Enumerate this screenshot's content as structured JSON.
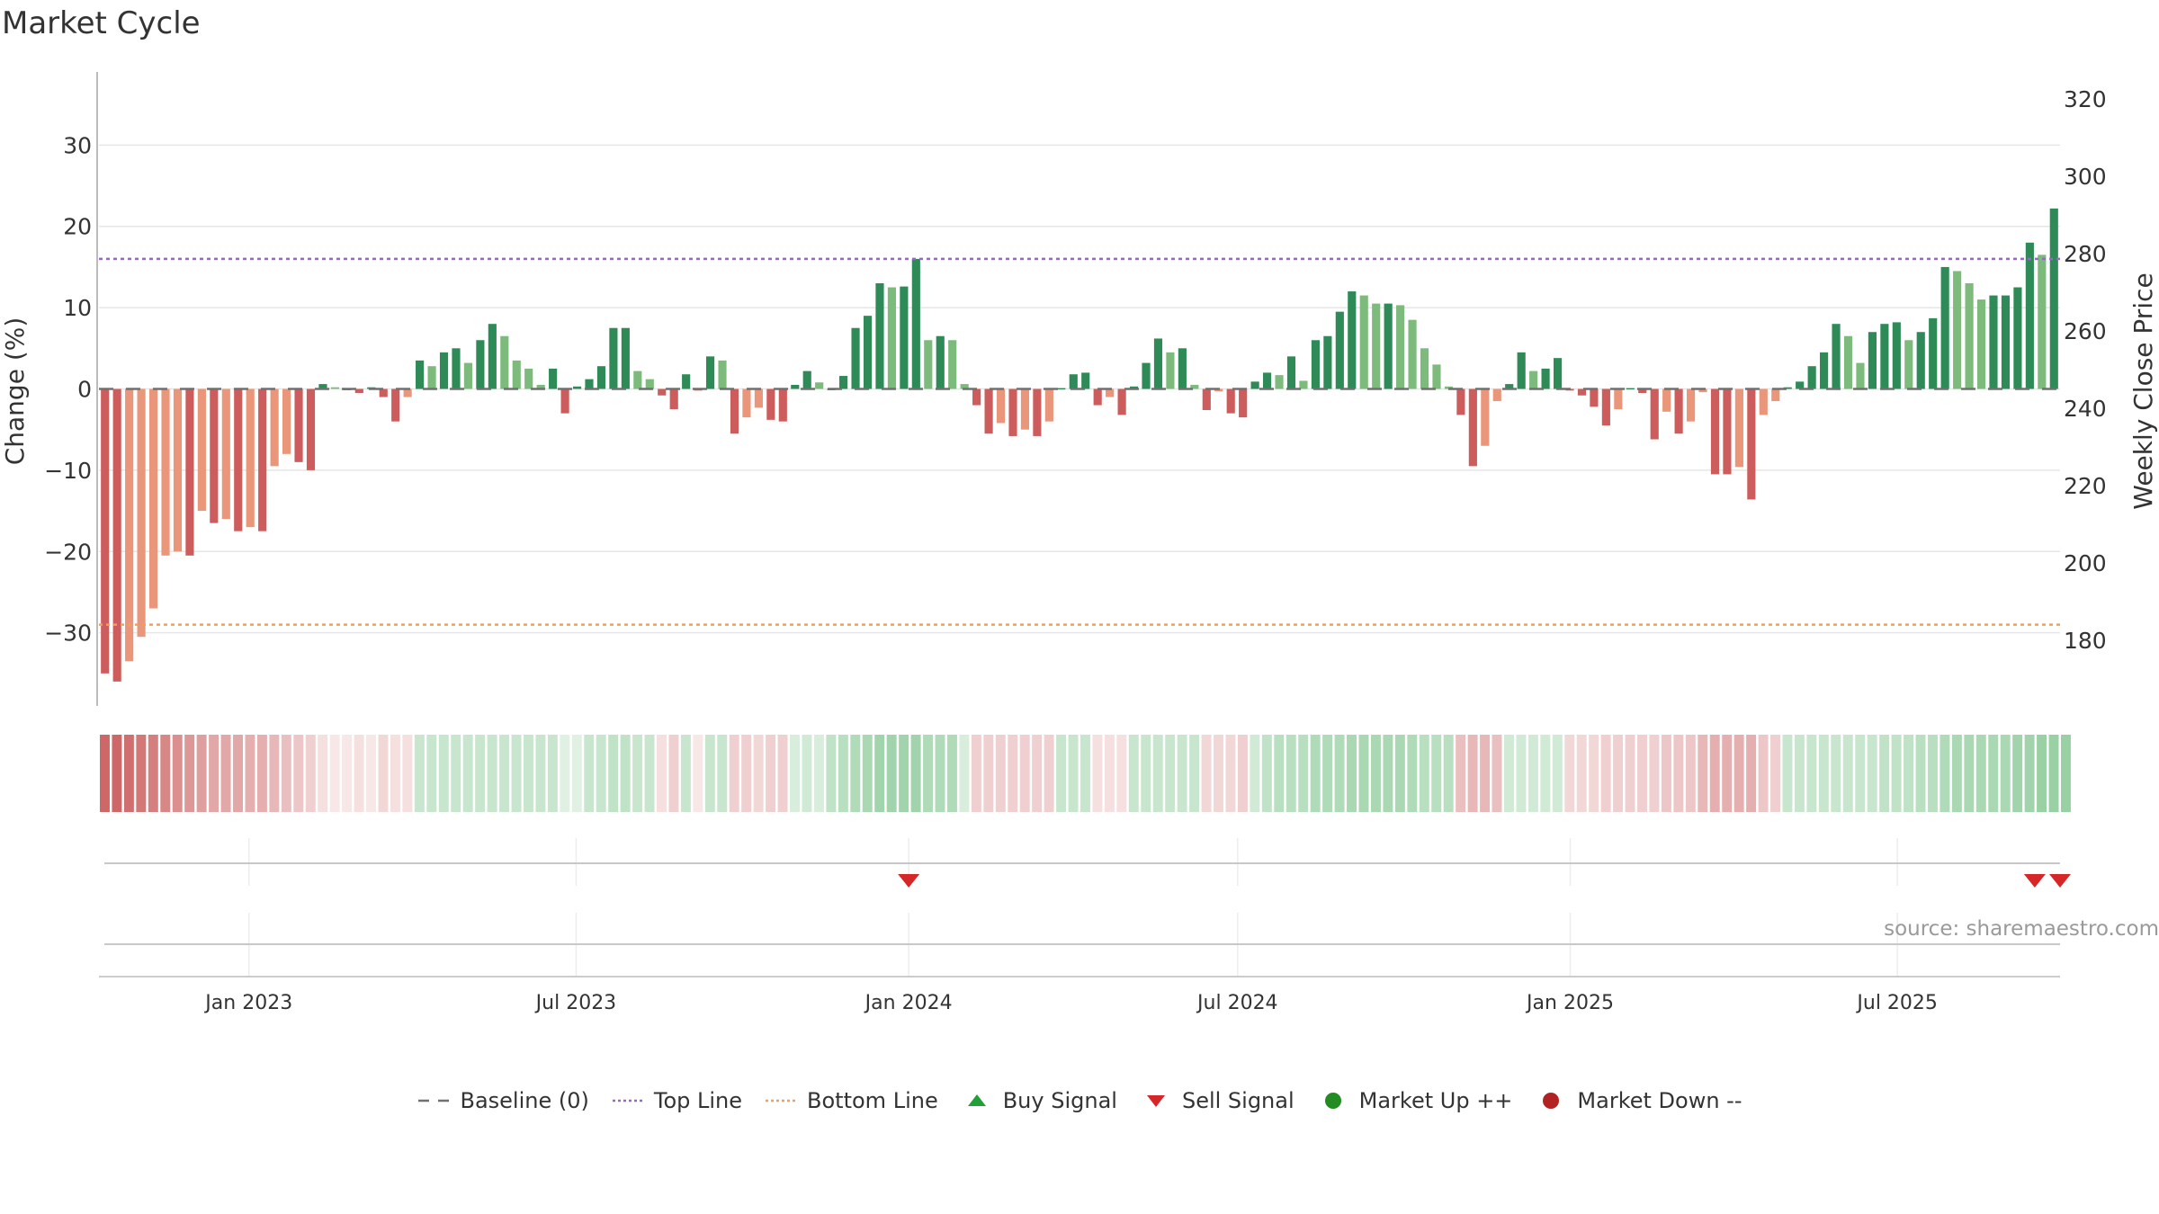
{
  "chart_data": {
    "type": "bar",
    "title": "Market Cycle",
    "ylabel": "Change (%)",
    "y2label": "Weekly Close Price",
    "ylim": [
      -39,
      39
    ],
    "y2lim": [
      163,
      327
    ],
    "yticks": [
      30,
      20,
      10,
      0,
      -10,
      -20,
      -30
    ],
    "ytick_labels": [
      "30",
      "20",
      "10",
      "0",
      "−10",
      "−20",
      "−30"
    ],
    "y2ticks": [
      320,
      300,
      280,
      260,
      240,
      220,
      200,
      180
    ],
    "y2tick_labels": [
      "320",
      "300",
      "280",
      "260",
      "240",
      "220",
      "200",
      "180"
    ],
    "x_start": "2022-10-10",
    "x_end": "2025-09-29",
    "x_ticks": [
      {
        "date": "2023-01-01",
        "label": "Jan 2023"
      },
      {
        "date": "2023-07-01",
        "label": "Jul 2023"
      },
      {
        "date": "2024-01-01",
        "label": "Jan 2024"
      },
      {
        "date": "2024-07-01",
        "label": "Jul 2024"
      },
      {
        "date": "2025-01-01",
        "label": "Jan 2025"
      },
      {
        "date": "2025-07-01",
        "label": "Jul 2025"
      }
    ],
    "top_line": 16,
    "bottom_line": -29,
    "baseline": 0,
    "values": [
      -35,
      -36,
      -33.5,
      -30.5,
      -27,
      -20.5,
      -20,
      -20.5,
      -15,
      -16.5,
      -16,
      -17.5,
      -17,
      -17.5,
      -9.5,
      -8,
      -9,
      -10,
      0.6,
      0.2,
      -0.1,
      -0.5,
      0.2,
      -1,
      -4,
      -1,
      3.5,
      2.8,
      4.5,
      5,
      3.2,
      6,
      8,
      6.5,
      3.5,
      2.5,
      0.5,
      2.5,
      -3,
      0.3,
      1.2,
      2.8,
      7.5,
      7.5,
      2.2,
      1.2,
      -0.8,
      -2.5,
      1.8,
      -0.2,
      4,
      3.5,
      -5.5,
      -3.5,
      -2.3,
      -3.8,
      -4,
      0.5,
      2.2,
      0.8,
      -0.1,
      1.6,
      7.5,
      9,
      13,
      12.5,
      12.6,
      16,
      6,
      6.5,
      6,
      0.6,
      -2,
      -5.5,
      -4.2,
      -5.8,
      -5,
      -5.8,
      -4,
      0.1,
      1.8,
      2,
      -2,
      -1,
      -3.2,
      0.3,
      3.2,
      6.2,
      4.5,
      5,
      0.5,
      -2.6,
      -0.3,
      -3,
      -3.5,
      0.9,
      2,
      1.7,
      4,
      1,
      6,
      6.5,
      9.5,
      12,
      11.5,
      10.5,
      10.5,
      10.3,
      8.5,
      5,
      3,
      0.3,
      -3.2,
      -9.5,
      -7,
      -1.5,
      0.6,
      4.5,
      2.2,
      2.5,
      3.8,
      -0.2,
      -0.8,
      -2.2,
      -4.5,
      -2.5,
      0.1,
      -0.5,
      -6.2,
      -2.8,
      -5.5,
      -4,
      -0.4,
      -10.5,
      -10.5,
      -9.6,
      -13.6,
      -3.2,
      -1.5,
      0.2,
      0.9,
      2.8,
      4.5,
      8,
      6.5,
      3.2,
      7,
      8,
      8.2,
      6,
      7,
      8.7,
      15,
      14.5,
      13,
      11,
      11.5,
      11.5,
      12.5,
      18,
      16.5,
      22.2
    ],
    "strip_intensity": [
      -0.95,
      -0.95,
      -0.9,
      -0.85,
      -0.8,
      -0.75,
      -0.7,
      -0.65,
      -0.6,
      -0.55,
      -0.55,
      -0.55,
      -0.5,
      -0.5,
      -0.45,
      -0.4,
      -0.35,
      -0.3,
      -0.2,
      -0.15,
      -0.15,
      -0.2,
      -0.15,
      -0.25,
      -0.2,
      -0.2,
      0.35,
      0.35,
      0.35,
      0.35,
      0.35,
      0.35,
      0.35,
      0.35,
      0.35,
      0.35,
      0.35,
      0.35,
      0.2,
      0.2,
      0.35,
      0.35,
      0.4,
      0.4,
      0.35,
      0.35,
      -0.2,
      -0.3,
      0.35,
      -0.15,
      0.35,
      0.35,
      -0.3,
      -0.3,
      -0.25,
      -0.3,
      -0.3,
      0.25,
      0.3,
      0.25,
      0.4,
      0.45,
      0.5,
      0.55,
      0.6,
      0.6,
      0.6,
      0.6,
      0.5,
      0.5,
      0.5,
      0.25,
      -0.3,
      -0.3,
      -0.3,
      -0.3,
      -0.3,
      -0.3,
      -0.3,
      0.35,
      0.35,
      0.35,
      -0.2,
      -0.2,
      -0.2,
      0.35,
      0.35,
      0.35,
      0.35,
      0.35,
      0.35,
      -0.25,
      -0.25,
      -0.25,
      -0.3,
      0.3,
      0.4,
      0.45,
      0.45,
      0.45,
      0.5,
      0.5,
      0.5,
      0.55,
      0.55,
      0.55,
      0.55,
      0.55,
      0.5,
      0.45,
      0.45,
      0.45,
      -0.4,
      -0.45,
      -0.45,
      -0.4,
      0.3,
      0.3,
      0.3,
      0.3,
      0.3,
      -0.25,
      -0.25,
      -0.25,
      -0.3,
      -0.3,
      -0.3,
      -0.3,
      -0.3,
      -0.35,
      -0.35,
      -0.35,
      -0.45,
      -0.5,
      -0.5,
      -0.5,
      -0.5,
      -0.35,
      -0.3,
      0.35,
      0.35,
      0.35,
      0.35,
      0.35,
      0.35,
      0.35,
      0.35,
      0.4,
      0.4,
      0.4,
      0.45,
      0.45,
      0.5,
      0.55,
      0.55,
      0.55,
      0.55,
      0.55,
      0.6,
      0.6,
      0.65,
      0.65,
      0.65
    ],
    "sell_signals": [
      "2024-01-01",
      "2025-09-15",
      "2025-09-29"
    ],
    "buy_signals": [],
    "colors": {
      "strong_up": "#2e8b57",
      "mild_up": "#7dbb7d",
      "strong_down": "#cd5c5c",
      "mild_down": "#e9967a",
      "top_line": "#9966cc",
      "bottom_line": "#f0a05a",
      "baseline": "#707070",
      "buy": "#22a038",
      "sell": "#d62728",
      "market_up": "#228b22",
      "market_down": "#b22222"
    }
  },
  "source_text": "source: sharemaestro.com",
  "legend": [
    {
      "kind": "baseline",
      "label": "Baseline (0)"
    },
    {
      "kind": "top",
      "label": "Top Line"
    },
    {
      "kind": "bottom",
      "label": "Bottom Line"
    },
    {
      "kind": "buy",
      "label": "Buy Signal"
    },
    {
      "kind": "sell",
      "label": "Sell Signal"
    },
    {
      "kind": "up",
      "label": "Market Up ++"
    },
    {
      "kind": "down",
      "label": "Market Down --"
    }
  ]
}
